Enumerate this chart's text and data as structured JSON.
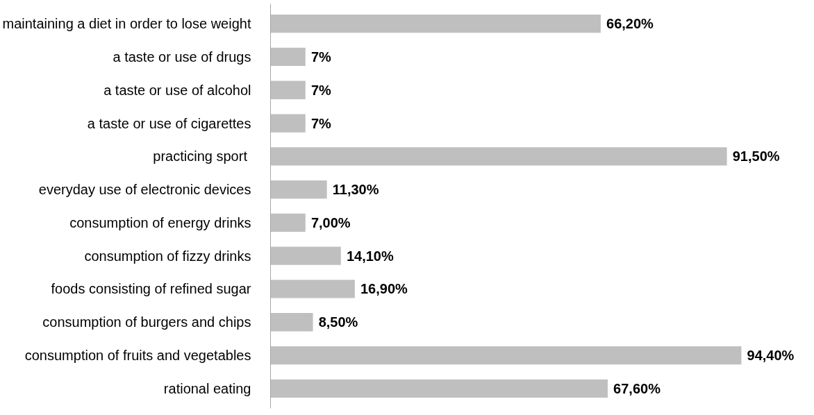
{
  "chart_data": {
    "type": "bar",
    "orientation": "horizontal",
    "categories": [
      "maintaining a diet in order to lose weight",
      "a taste or use of drugs",
      "a taste or use of alcohol",
      "a taste or use of cigarettes",
      "practicing sport ",
      "everyday use of electronic devices",
      "consumption of energy drinks",
      "consumption of fizzy drinks",
      "foods consisting of refined sugar",
      "consumption of burgers and chips",
      "consumption of fruits and vegetables",
      "rational eating"
    ],
    "values": [
      66.2,
      7,
      7,
      7,
      91.5,
      11.3,
      7,
      14.1,
      16.9,
      8.5,
      94.4,
      67.6
    ],
    "value_labels": [
      "66,20%",
      "7%",
      "7%",
      "7%",
      "91,50%",
      "11,30%",
      "7,00%",
      "14,10%",
      "16,90%",
      "8,50%",
      "94,40%",
      "67,60%"
    ],
    "color": "#bfbfbf",
    "grid": false,
    "tick_labels": "y"
  }
}
